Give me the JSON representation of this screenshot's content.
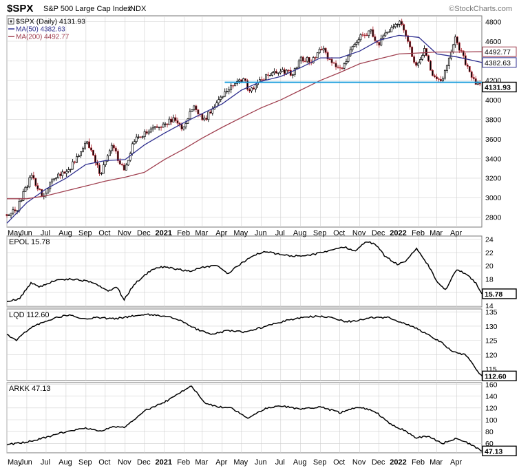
{
  "header": {
    "symbol": "$SPX",
    "name": "S&P 500 Large Cap Index",
    "exchange": "INDX",
    "source": "©StockCharts.com"
  },
  "legend": {
    "main": "$SPX (Daily) 4131.93",
    "ma50": "MA(50) 4382.63",
    "ma200": "MA(200) 4492.77"
  },
  "colors": {
    "price": "#000000",
    "ma50": "#2f2f8f",
    "ma200": "#a04050",
    "support": "#22a0dd",
    "grid": "#d0d0d0",
    "frame": "#777777",
    "text": "#000000"
  },
  "x_axis": {
    "labels": [
      "May",
      "Jun",
      "Jul",
      "Aug",
      "Sep",
      "Oct",
      "Nov",
      "Dec",
      "2021",
      "Feb",
      "Mar",
      "Apr",
      "May",
      "Jun",
      "Jul",
      "Aug",
      "Sep",
      "Oct",
      "Nov",
      "Dec",
      "2022",
      "Feb",
      "Mar",
      "Apr"
    ],
    "bold_labels": [
      "2021",
      "2022"
    ]
  },
  "chart_data": [
    {
      "type": "line",
      "title": "$SPX (Daily) 4131.93",
      "style": "candlestick price with moving averages",
      "x_range": [
        "2020-05-01",
        "2022-05-10"
      ],
      "ylim": [
        2700,
        4860
      ],
      "y_ticks": [
        2800,
        3000,
        3200,
        3400,
        3600,
        3800,
        4000,
        4200,
        4400,
        4600,
        4800
      ],
      "grid": true,
      "last_value_tags": [
        {
          "value": 4492.77,
          "label": "4492.77",
          "series": "MA(200)"
        },
        {
          "value": 4382.63,
          "label": "4382.63",
          "series": "MA(50)"
        },
        {
          "value": 4131.93,
          "label": "4131.93",
          "series": "$SPX"
        }
      ],
      "support_line": {
        "value": 4180,
        "from": "2021-04-05",
        "to": "2022-05-10"
      },
      "series": [
        {
          "name": "$SPX (Daily)",
          "role": "price",
          "x": [
            "2020-05-01",
            "2020-05-15",
            "2020-06-08",
            "2020-06-26",
            "2020-07-15",
            "2020-08-01",
            "2020-08-15",
            "2020-09-02",
            "2020-09-23",
            "2020-10-12",
            "2020-10-30",
            "2020-11-15",
            "2020-12-01",
            "2020-12-15",
            "2021-01-01",
            "2021-01-15",
            "2021-01-29",
            "2021-02-15",
            "2021-03-04",
            "2021-03-25",
            "2021-04-15",
            "2021-05-07",
            "2021-05-12",
            "2021-05-28",
            "2021-06-15",
            "2021-07-01",
            "2021-07-19",
            "2021-08-02",
            "2021-08-18",
            "2021-09-02",
            "2021-09-20",
            "2021-10-04",
            "2021-10-18",
            "2021-11-02",
            "2021-11-18",
            "2021-11-30",
            "2021-12-15",
            "2022-01-03",
            "2022-01-14",
            "2022-01-27",
            "2022-02-10",
            "2022-02-24",
            "2022-03-08",
            "2022-03-29",
            "2022-04-12",
            "2022-04-22",
            "2022-05-02",
            "2022-05-10"
          ],
          "values": [
            2830,
            2860,
            3230,
            3010,
            3220,
            3260,
            3370,
            3580,
            3240,
            3530,
            3270,
            3580,
            3660,
            3700,
            3750,
            3800,
            3710,
            3930,
            3790,
            4000,
            4140,
            4230,
            4060,
            4200,
            4250,
            4310,
            4260,
            4420,
            4400,
            4540,
            4360,
            4300,
            4520,
            4660,
            4700,
            4570,
            4700,
            4790,
            4640,
            4330,
            4510,
            4220,
            4180,
            4630,
            4420,
            4280,
            4160,
            4130
          ]
        },
        {
          "name": "MA(50)",
          "role": "ma50",
          "x": [
            "2020-05-01",
            "2020-06-01",
            "2020-07-01",
            "2020-08-01",
            "2020-09-01",
            "2020-10-01",
            "2020-11-01",
            "2020-12-01",
            "2021-01-01",
            "2021-02-01",
            "2021-03-01",
            "2021-04-01",
            "2021-05-01",
            "2021-06-01",
            "2021-07-01",
            "2021-08-01",
            "2021-09-01",
            "2021-10-01",
            "2021-11-01",
            "2021-12-01",
            "2022-01-01",
            "2022-02-01",
            "2022-03-01",
            "2022-04-01",
            "2022-05-10"
          ],
          "values": [
            2740,
            2950,
            3090,
            3200,
            3340,
            3380,
            3390,
            3540,
            3660,
            3770,
            3860,
            3960,
            4100,
            4190,
            4240,
            4330,
            4430,
            4430,
            4500,
            4610,
            4660,
            4640,
            4470,
            4440,
            4382.63
          ]
        },
        {
          "name": "MA(200)",
          "role": "ma200",
          "x": [
            "2020-05-01",
            "2020-06-01",
            "2020-07-01",
            "2020-08-01",
            "2020-09-01",
            "2020-10-01",
            "2020-11-01",
            "2020-12-01",
            "2021-01-01",
            "2021-02-01",
            "2021-03-01",
            "2021-04-01",
            "2021-05-01",
            "2021-06-01",
            "2021-07-01",
            "2021-08-01",
            "2021-09-01",
            "2021-10-01",
            "2021-11-01",
            "2021-12-01",
            "2022-01-01",
            "2022-02-01",
            "2022-03-01",
            "2022-04-01",
            "2022-05-10"
          ],
          "values": [
            2990,
            2990,
            3020,
            3070,
            3120,
            3170,
            3210,
            3260,
            3390,
            3500,
            3610,
            3720,
            3820,
            3920,
            4000,
            4100,
            4200,
            4280,
            4370,
            4420,
            4470,
            4480,
            4490,
            4490,
            4492.77
          ]
        }
      ]
    },
    {
      "type": "line",
      "title": "EPOL 15.78",
      "ylim": [
        13.8,
        24.5
      ],
      "y_ticks": [
        14,
        16,
        18,
        20,
        22,
        24
      ],
      "grid": true,
      "last_value_tags": [
        {
          "value": 15.78,
          "label": "15.78",
          "series": "EPOL"
        }
      ],
      "series": [
        {
          "name": "EPOL",
          "x": [
            "2020-05-01",
            "2020-05-20",
            "2020-06-08",
            "2020-06-20",
            "2020-07-15",
            "2020-08-10",
            "2020-08-25",
            "2020-09-15",
            "2020-10-05",
            "2020-10-20",
            "2020-10-30",
            "2020-11-15",
            "2020-12-01",
            "2020-12-20",
            "2021-01-05",
            "2021-01-20",
            "2021-02-10",
            "2021-03-01",
            "2021-03-25",
            "2021-04-10",
            "2021-04-25",
            "2021-05-15",
            "2021-06-05",
            "2021-06-25",
            "2021-07-15",
            "2021-08-05",
            "2021-08-25",
            "2021-09-10",
            "2021-09-25",
            "2021-10-10",
            "2021-10-25",
            "2021-11-10",
            "2021-11-25",
            "2021-12-10",
            "2021-12-30",
            "2022-01-12",
            "2022-01-28",
            "2022-02-15",
            "2022-02-28",
            "2022-03-15",
            "2022-03-31",
            "2022-04-15",
            "2022-05-01",
            "2022-05-10"
          ],
          "values": [
            14.6,
            15.0,
            17.5,
            16.8,
            17.8,
            18.0,
            17.8,
            17.4,
            16.2,
            16.8,
            14.8,
            17.2,
            18.6,
            19.8,
            19.8,
            19.5,
            19.2,
            19.8,
            20.0,
            18.8,
            20.0,
            21.3,
            22.2,
            21.8,
            21.5,
            21.5,
            21.8,
            22.2,
            22.6,
            22.8,
            22.2,
            23.7,
            23.3,
            21.5,
            20.2,
            20.8,
            22.6,
            20.2,
            17.8,
            16.3,
            19.4,
            18.8,
            17.4,
            15.78
          ]
        }
      ]
    },
    {
      "type": "line",
      "title": "LQD 112.60",
      "ylim": [
        111,
        136
      ],
      "y_ticks": [
        115,
        120,
        125,
        130,
        135
      ],
      "grid": true,
      "last_value_tags": [
        {
          "value": 112.6,
          "label": "112.60",
          "series": "LQD"
        }
      ],
      "series": [
        {
          "name": "LQD",
          "x": [
            "2020-05-01",
            "2020-05-15",
            "2020-06-10",
            "2020-07-10",
            "2020-08-05",
            "2020-08-25",
            "2020-09-20",
            "2020-10-15",
            "2020-11-10",
            "2020-12-05",
            "2021-01-05",
            "2021-01-25",
            "2021-02-20",
            "2021-03-15",
            "2021-04-10",
            "2021-05-05",
            "2021-06-01",
            "2021-07-01",
            "2021-08-01",
            "2021-08-25",
            "2021-09-20",
            "2021-10-10",
            "2021-10-30",
            "2021-11-20",
            "2021-12-15",
            "2022-01-10",
            "2022-01-30",
            "2022-02-20",
            "2022-03-10",
            "2022-03-25",
            "2022-04-15",
            "2022-05-01",
            "2022-05-10"
          ],
          "values": [
            127.0,
            125.0,
            130.0,
            132.5,
            134.0,
            132.5,
            133.0,
            132.5,
            133.5,
            134.0,
            133.5,
            132.0,
            129.0,
            127.0,
            128.5,
            128.0,
            129.5,
            131.5,
            133.0,
            133.5,
            133.0,
            131.5,
            132.0,
            133.0,
            133.0,
            131.0,
            129.0,
            126.5,
            124.0,
            121.0,
            120.0,
            115.0,
            112.6
          ]
        }
      ]
    },
    {
      "type": "line",
      "title": "ARKK 47.13",
      "ylim": [
        44,
        163
      ],
      "y_ticks": [
        60,
        80,
        100,
        120,
        140,
        160
      ],
      "grid": true,
      "last_value_tags": [
        {
          "value": 47.13,
          "label": "47.13",
          "series": "ARKK"
        }
      ],
      "series": [
        {
          "name": "ARKK",
          "x": [
            "2020-05-01",
            "2020-06-01",
            "2020-07-01",
            "2020-08-01",
            "2020-09-01",
            "2020-09-21",
            "2020-10-15",
            "2020-11-01",
            "2020-12-01",
            "2021-01-05",
            "2021-02-12",
            "2021-03-05",
            "2021-03-25",
            "2021-04-15",
            "2021-05-12",
            "2021-06-05",
            "2021-07-01",
            "2021-08-01",
            "2021-09-01",
            "2021-10-01",
            "2021-11-01",
            "2021-11-25",
            "2021-12-20",
            "2022-01-10",
            "2022-01-27",
            "2022-02-15",
            "2022-03-10",
            "2022-03-31",
            "2022-04-20",
            "2022-05-10"
          ],
          "values": [
            58,
            62,
            70,
            80,
            86,
            80,
            88,
            88,
            115,
            132,
            158,
            128,
            122,
            120,
            102,
            118,
            124,
            118,
            122,
            112,
            122,
            114,
            92,
            82,
            70,
            72,
            60,
            68,
            60,
            47.13
          ]
        }
      ]
    }
  ]
}
